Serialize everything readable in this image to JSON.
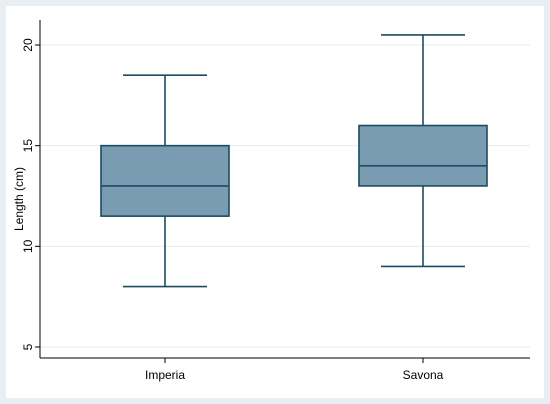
{
  "chart_data": {
    "type": "box",
    "categories": [
      "Imperia",
      "Savona"
    ],
    "ylabel": "Length (cm)",
    "xlabel": "",
    "title": "",
    "ylim": [
      5,
      20.5
    ],
    "yticks": [
      "5",
      "10",
      "15",
      "20"
    ],
    "grid": true,
    "legend": "none",
    "boxes": [
      {
        "category": "Imperia",
        "min": 8,
        "q1": 11.5,
        "median": 13,
        "q3": 15,
        "max": 18.5
      },
      {
        "category": "Savona",
        "min": 9,
        "q1": 13,
        "median": 14,
        "q3": 16,
        "max": 20.5
      }
    ],
    "colors": {
      "outer_background": "#e8eef2",
      "plot_background": "#ffffff",
      "gridline": "#e4ecf0",
      "box_fill": "#7a9cb2",
      "box_stroke": "#1d4b5f",
      "axis": "#000000"
    }
  }
}
